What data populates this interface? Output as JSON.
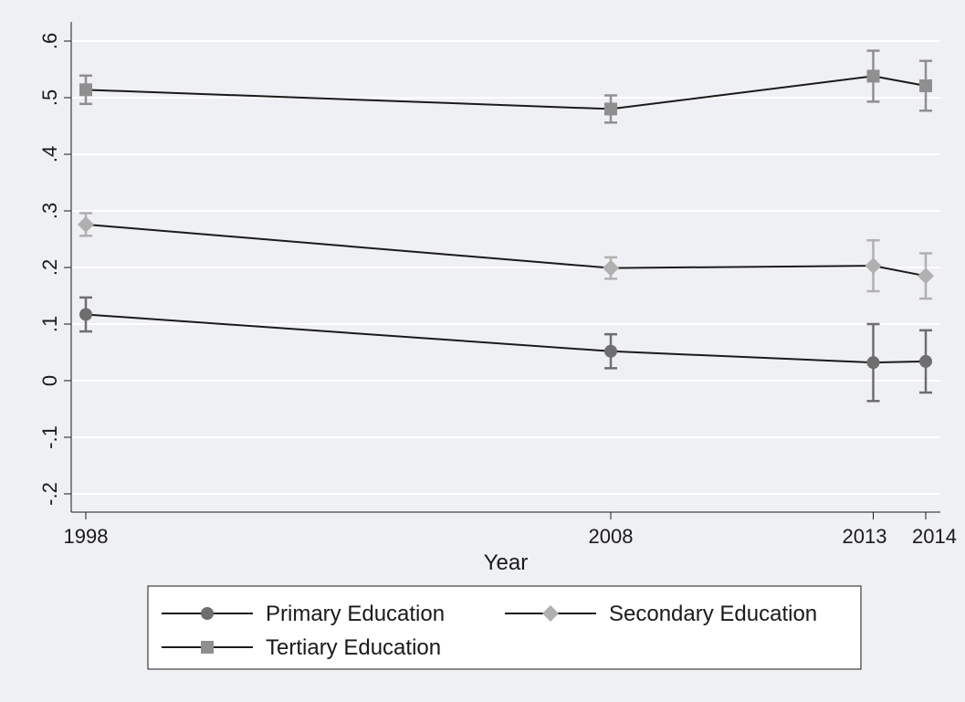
{
  "chart_data": {
    "type": "line",
    "title": "",
    "xlabel": "Year",
    "ylabel": "",
    "x": [
      1998,
      2008,
      2013,
      2014
    ],
    "x_tick_labels": [
      "1998",
      "2008",
      "2013",
      "2014"
    ],
    "y_ticks": [
      -0.2,
      -0.1,
      0,
      0.1,
      0.2,
      0.3,
      0.4,
      0.5,
      0.6
    ],
    "y_tick_labels": [
      "-.2",
      "-.1",
      "0",
      ".1",
      ".2",
      ".3",
      ".4",
      ".5",
      ".6"
    ],
    "ylim": [
      -0.2,
      0.6
    ],
    "grid": true,
    "legend_position": "bottom",
    "series": [
      {
        "name": "Primary Education",
        "marker": "circle",
        "color": "#6e6e6e",
        "values": [
          0.117,
          0.052,
          0.032,
          0.034
        ],
        "ci_low": [
          0.087,
          0.022,
          -0.036,
          -0.021
        ],
        "ci_high": [
          0.147,
          0.082,
          0.1,
          0.089
        ]
      },
      {
        "name": "Secondary Education",
        "marker": "diamond",
        "color": "#b0b0b0",
        "values": [
          0.276,
          0.199,
          0.203,
          0.185
        ],
        "ci_low": [
          0.256,
          0.18,
          0.158,
          0.145
        ],
        "ci_high": [
          0.296,
          0.218,
          0.248,
          0.225
        ]
      },
      {
        "name": "Tertiary Education",
        "marker": "square",
        "color": "#8f8f8f",
        "values": [
          0.514,
          0.48,
          0.538,
          0.521
        ],
        "ci_low": [
          0.489,
          0.456,
          0.493,
          0.477
        ],
        "ci_high": [
          0.539,
          0.504,
          0.583,
          0.565
        ]
      }
    ]
  }
}
